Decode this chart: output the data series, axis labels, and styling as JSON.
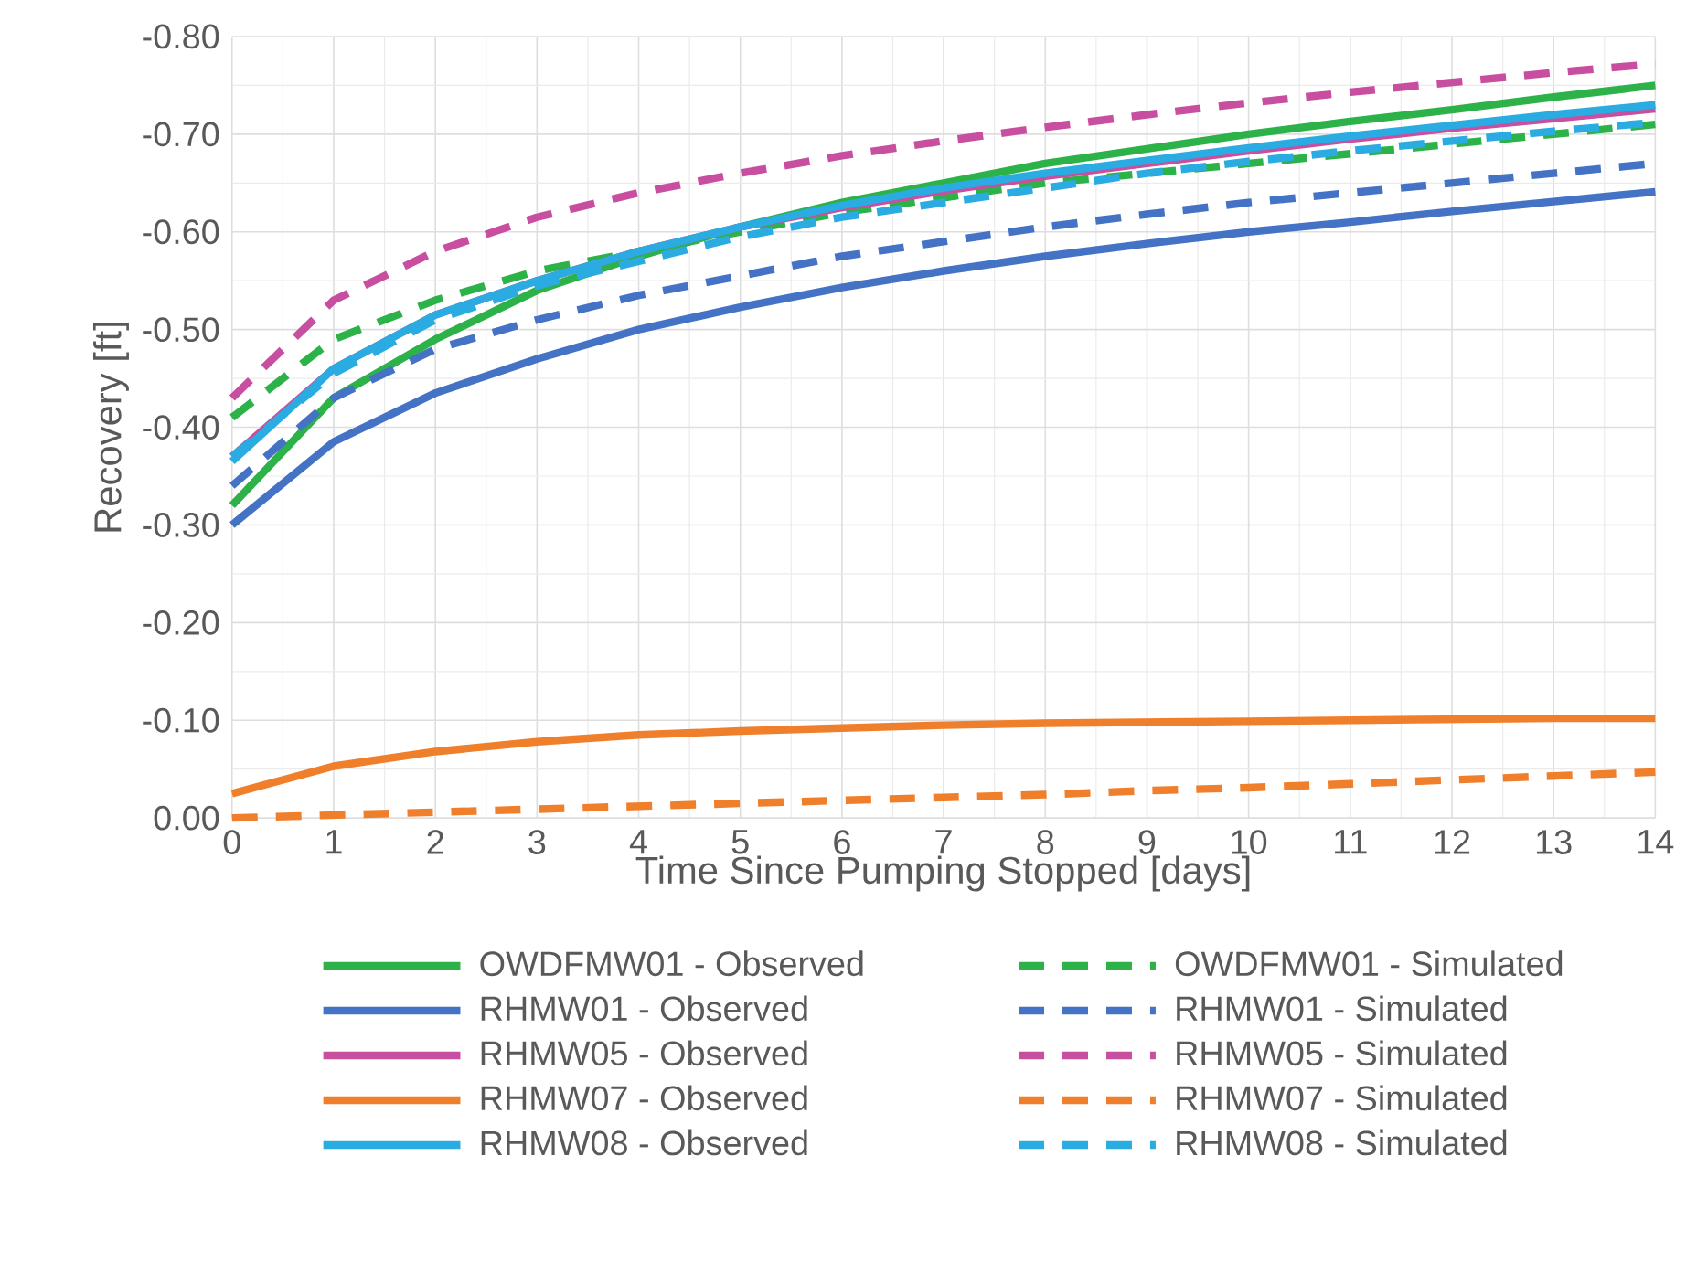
{
  "chart_data": {
    "type": "line",
    "xlabel": "Time Since Pumping Stopped [days]",
    "ylabel": "Recovery [ft]",
    "x": [
      0,
      1,
      2,
      3,
      4,
      5,
      6,
      7,
      8,
      9,
      10,
      11,
      12,
      13,
      14
    ],
    "xlim": [
      0,
      14
    ],
    "xticks": [
      0,
      1,
      2,
      3,
      4,
      5,
      6,
      7,
      8,
      9,
      10,
      11,
      12,
      13,
      14
    ],
    "ylim": [
      0,
      -0.8
    ],
    "yticks": [
      {
        "value": 0,
        "label": "0.00"
      },
      {
        "value": -0.1,
        "label": "-0.10"
      },
      {
        "value": -0.2,
        "label": "-0.20"
      },
      {
        "value": -0.3,
        "label": "-0.30"
      },
      {
        "value": -0.4,
        "label": "-0.40"
      },
      {
        "value": -0.5,
        "label": "-0.50"
      },
      {
        "value": -0.6,
        "label": "-0.60"
      },
      {
        "value": -0.7,
        "label": "-0.70"
      },
      {
        "value": -0.8,
        "label": "-0.80"
      }
    ],
    "grid": true,
    "legend": "bottom",
    "series": [
      {
        "name": "OWDFMW01 - Observed",
        "color": "#2db24a",
        "line_style": "solid",
        "values": [
          -0.32,
          -0.43,
          -0.49,
          -0.54,
          -0.575,
          -0.605,
          -0.63,
          -0.65,
          -0.67,
          -0.685,
          -0.7,
          -0.713,
          -0.725,
          -0.738,
          -0.75
        ]
      },
      {
        "name": "OWDFMW01 - Simulated",
        "color": "#2db24a",
        "line_style": "dashed",
        "values": [
          -0.41,
          -0.49,
          -0.53,
          -0.56,
          -0.58,
          -0.6,
          -0.62,
          -0.635,
          -0.65,
          -0.66,
          -0.67,
          -0.68,
          -0.69,
          -0.7,
          -0.71
        ]
      },
      {
        "name": "RHMW01 - Observed",
        "color": "#4472c4",
        "line_style": "solid",
        "values": [
          -0.3,
          -0.385,
          -0.435,
          -0.47,
          -0.5,
          -0.523,
          -0.543,
          -0.56,
          -0.575,
          -0.588,
          -0.6,
          -0.61,
          -0.621,
          -0.631,
          -0.641
        ]
      },
      {
        "name": "RHMW01 - Simulated",
        "color": "#4472c4",
        "line_style": "dashed",
        "values": [
          -0.34,
          -0.43,
          -0.48,
          -0.51,
          -0.535,
          -0.555,
          -0.575,
          -0.59,
          -0.605,
          -0.618,
          -0.63,
          -0.64,
          -0.65,
          -0.66,
          -0.67
        ]
      },
      {
        "name": "RHMW05 - Observed",
        "color": "#c84f9f",
        "line_style": "solid",
        "values": [
          -0.37,
          -0.46,
          -0.515,
          -0.55,
          -0.58,
          -0.605,
          -0.625,
          -0.642,
          -0.657,
          -0.67,
          -0.683,
          -0.695,
          -0.706,
          -0.716,
          -0.726
        ]
      },
      {
        "name": "RHMW05 - Simulated",
        "color": "#c84f9f",
        "line_style": "dashed",
        "values": [
          -0.43,
          -0.53,
          -0.58,
          -0.615,
          -0.64,
          -0.66,
          -0.678,
          -0.693,
          -0.707,
          -0.72,
          -0.732,
          -0.743,
          -0.753,
          -0.763,
          -0.772
        ]
      },
      {
        "name": "RHMW07 - Observed",
        "color": "#f07f2c",
        "line_style": "solid",
        "values": [
          -0.025,
          -0.053,
          -0.068,
          -0.078,
          -0.085,
          -0.089,
          -0.092,
          -0.095,
          -0.097,
          -0.098,
          -0.099,
          -0.1,
          -0.101,
          -0.102,
          -0.102
        ]
      },
      {
        "name": "RHMW07 - Simulated",
        "color": "#f07f2c",
        "line_style": "dashed",
        "values": [
          0,
          -0.003,
          -0.006,
          -0.009,
          -0.012,
          -0.015,
          -0.018,
          -0.021,
          -0.024,
          -0.028,
          -0.031,
          -0.035,
          -0.039,
          -0.043,
          -0.047
        ]
      },
      {
        "name": "RHMW08 - Observed",
        "color": "#2aabe2",
        "line_style": "solid",
        "values": [
          -0.365,
          -0.46,
          -0.515,
          -0.55,
          -0.58,
          -0.605,
          -0.627,
          -0.645,
          -0.66,
          -0.673,
          -0.686,
          -0.698,
          -0.709,
          -0.72,
          -0.73
        ]
      },
      {
        "name": "RHMW08 - Simulated",
        "color": "#2aabe2",
        "line_style": "dashed",
        "values": [
          -0.37,
          -0.455,
          -0.51,
          -0.545,
          -0.57,
          -0.595,
          -0.615,
          -0.63,
          -0.645,
          -0.66,
          -0.672,
          -0.683,
          -0.693,
          -0.703,
          -0.712
        ]
      }
    ]
  }
}
